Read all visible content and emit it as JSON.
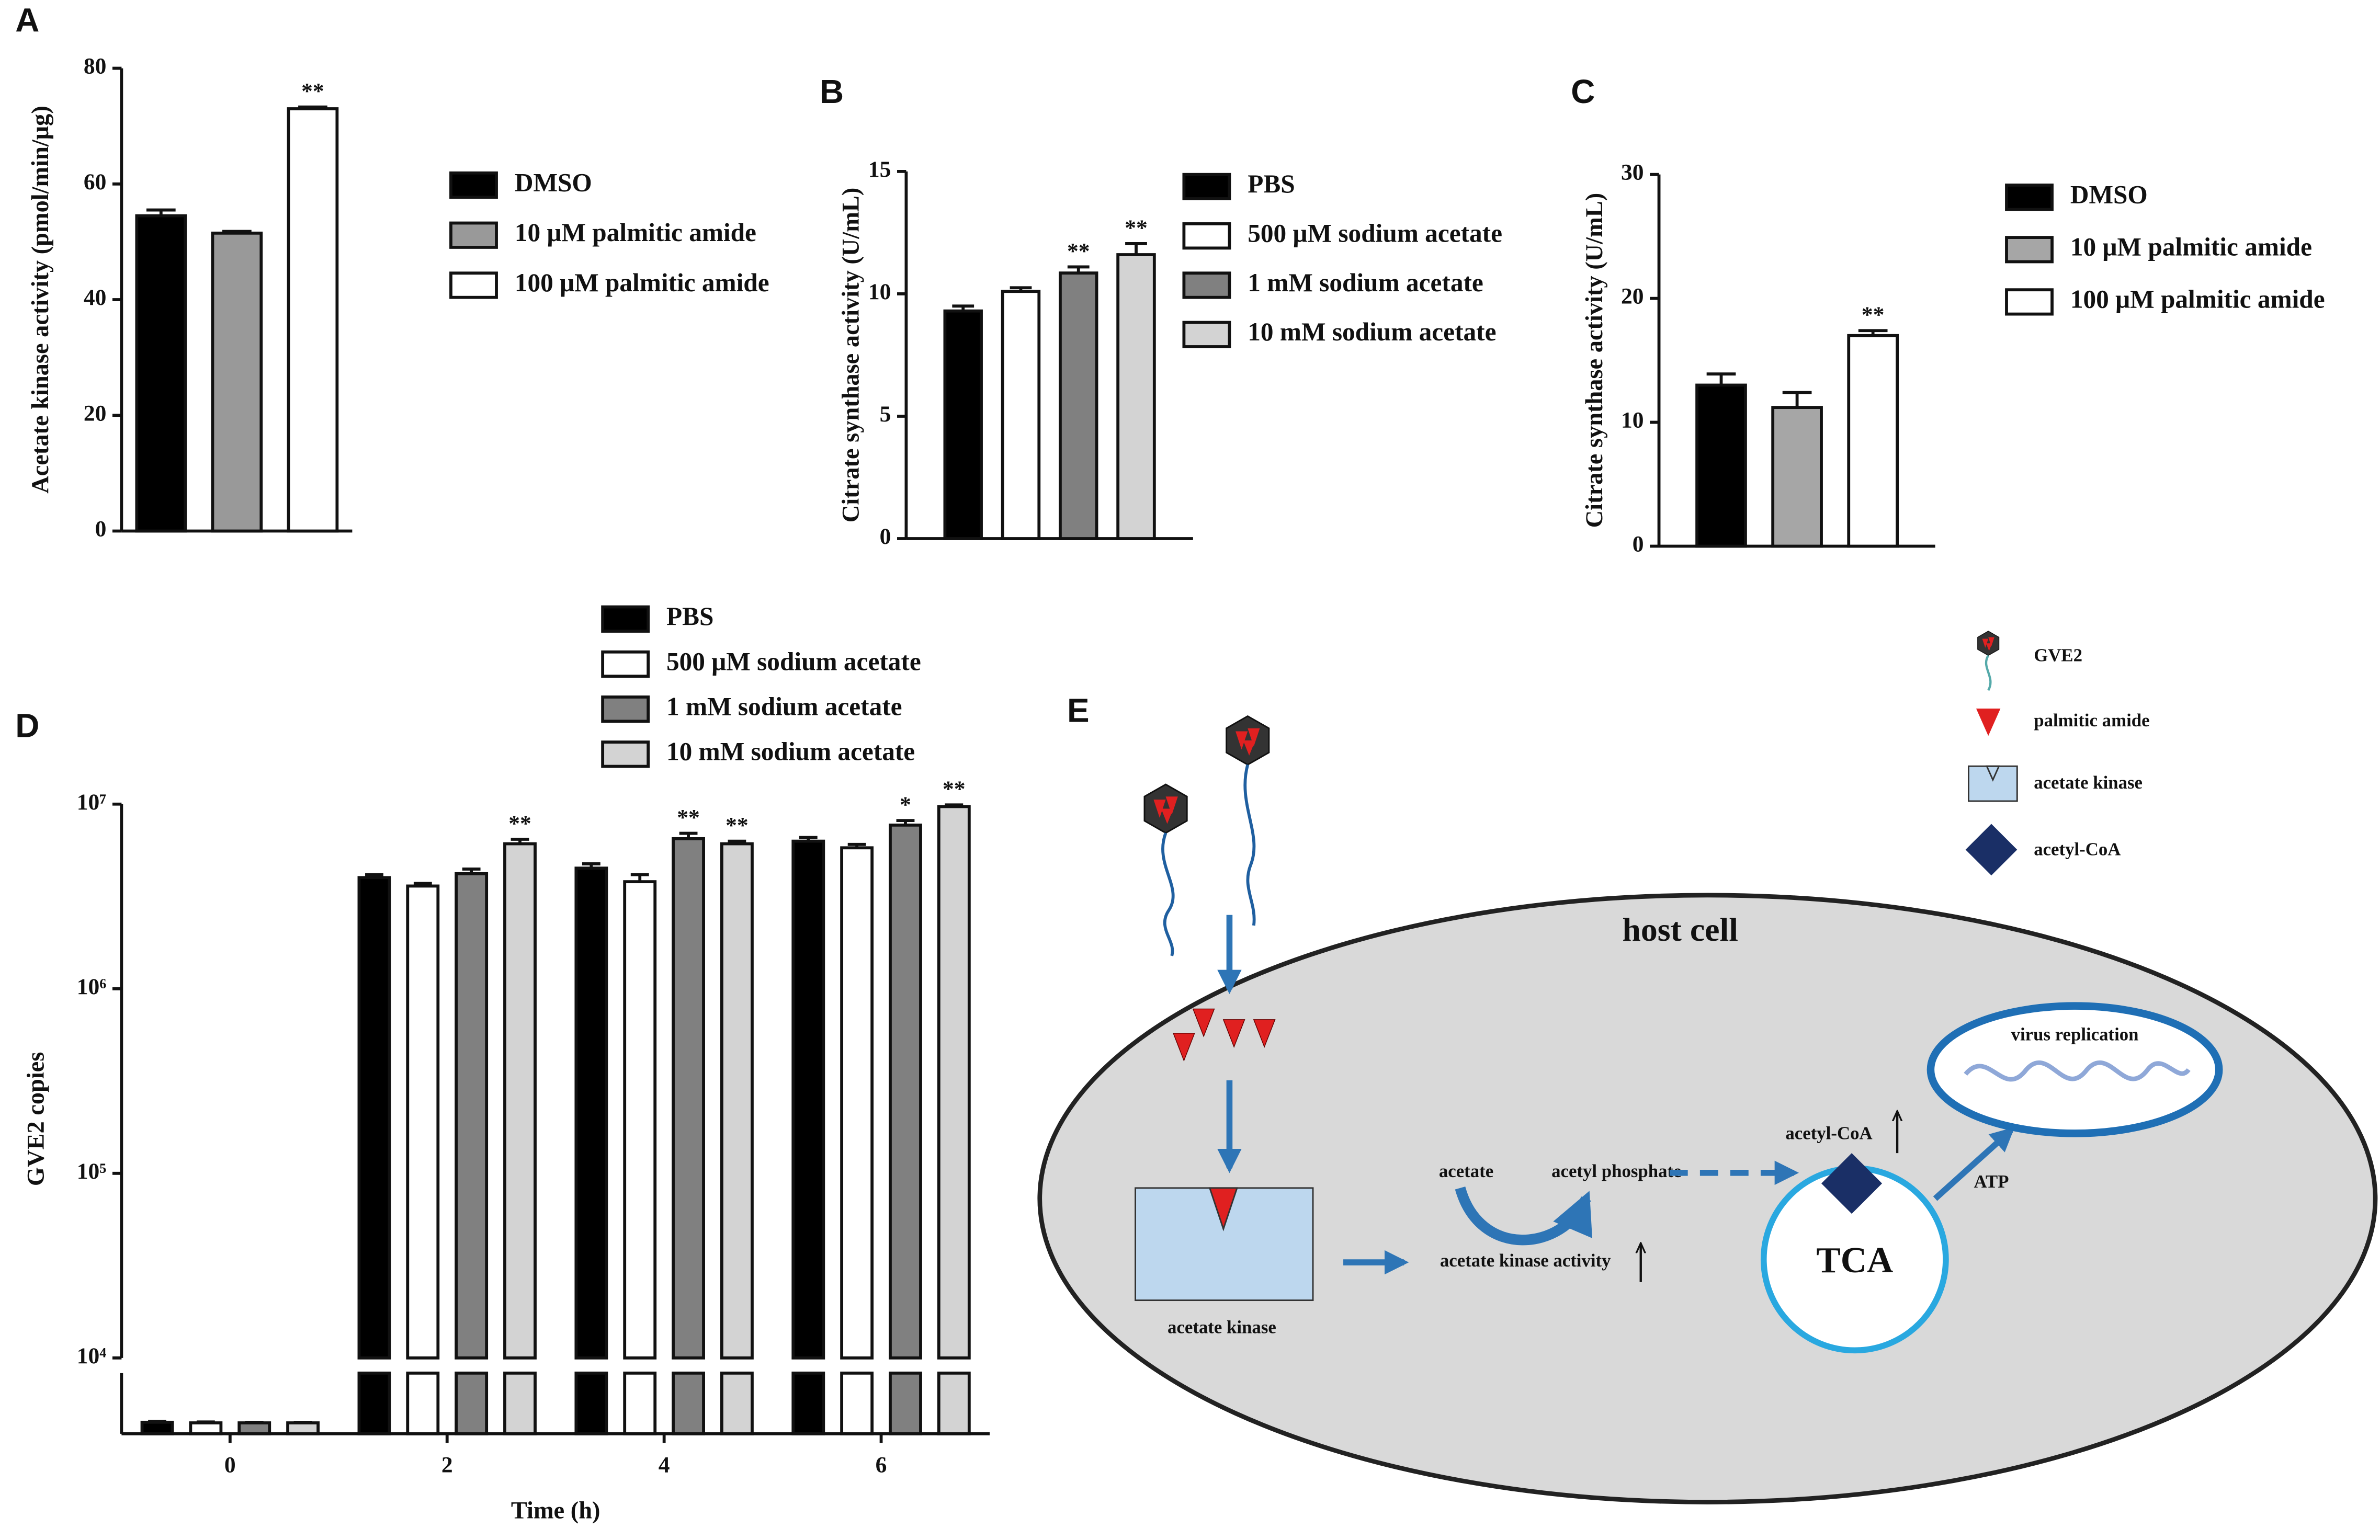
{
  "chart_data": [
    {
      "type": "bar",
      "label": "A",
      "ylabel": "Acetate kinase activity (pmol/min/μg)",
      "categories": [
        null
      ],
      "series": [
        {
          "name": "DMSO",
          "color": "#000000",
          "values": [
            54.5
          ],
          "errors": [
            1.0
          ],
          "significance": [
            null
          ]
        },
        {
          "name": "10 μM palmitic amide",
          "color": "#999999",
          "values": [
            51.5
          ],
          "errors": [
            0.3
          ],
          "significance": [
            null
          ]
        },
        {
          "name": "100 μM palmitic amide",
          "color": "#ffffff",
          "values": [
            73
          ],
          "errors": [
            0.3
          ],
          "significance": [
            "**"
          ]
        }
      ],
      "ylim": [
        0,
        80
      ],
      "yticks": [
        0,
        20,
        40,
        60,
        80
      ],
      "legend": "right"
    },
    {
      "type": "bar",
      "label": "B",
      "ylabel": "Citrate synthase activity (U/mL)",
      "categories": [
        null
      ],
      "series": [
        {
          "name": "PBS",
          "color": "#000000",
          "values": [
            9.3
          ],
          "errors": [
            0.2
          ],
          "significance": [
            null
          ]
        },
        {
          "name": "500 μM sodium acetate",
          "color": "#ffffff",
          "values": [
            10.1
          ],
          "errors": [
            0.15
          ],
          "significance": [
            null
          ]
        },
        {
          "name": "1 mM sodium acetate",
          "color": "#808080",
          "values": [
            10.85
          ],
          "errors": [
            0.25
          ],
          "significance": [
            "**"
          ]
        },
        {
          "name": "10 mM sodium acetate",
          "color": "#d3d3d3",
          "values": [
            11.6
          ],
          "errors": [
            0.45
          ],
          "significance": [
            "**"
          ]
        }
      ],
      "ylim": [
        0,
        15
      ],
      "yticks": [
        0,
        5,
        10,
        15
      ],
      "legend": "right"
    },
    {
      "type": "bar",
      "label": "C",
      "ylabel": "Citrate synthase activity (U/mL)",
      "categories": [
        null
      ],
      "series": [
        {
          "name": "DMSO",
          "color": "#000000",
          "values": [
            13
          ],
          "errors": [
            0.9
          ],
          "significance": [
            null
          ]
        },
        {
          "name": "10 μM palmitic amide",
          "color": "#a6a6a6",
          "values": [
            11.2
          ],
          "errors": [
            1.2
          ],
          "significance": [
            null
          ]
        },
        {
          "name": "100 μM palmitic amide",
          "color": "#ffffff",
          "values": [
            17
          ],
          "errors": [
            0.4
          ],
          "significance": [
            "**"
          ]
        }
      ],
      "ylim": [
        0,
        30
      ],
      "yticks": [
        0,
        10,
        20,
        30
      ],
      "legend": "right"
    },
    {
      "type": "bar",
      "label": "D",
      "ylabel": "GVE2 copies",
      "xlabel": "Time (h)",
      "categories": [
        "0",
        "2",
        "4",
        "6"
      ],
      "series": [
        {
          "name": "PBS",
          "color": "#000000",
          "values": [
            1900,
            4000000,
            4500000,
            6300000
          ],
          "errors": [
            150,
            150000,
            250000,
            300000
          ],
          "significance": [
            null,
            null,
            null,
            null
          ]
        },
        {
          "name": "500 μM sodium acetate",
          "color": "#ffffff",
          "values": [
            1800,
            3600000,
            3800000,
            5800000
          ],
          "errors": [
            150,
            120000,
            350000,
            250000
          ],
          "significance": [
            null,
            null,
            null,
            null
          ]
        },
        {
          "name": "1 mM sodium acetate",
          "color": "#808080",
          "values": [
            1800,
            4200000,
            6500000,
            7700000
          ],
          "errors": [
            100,
            250000,
            450000,
            450000
          ],
          "significance": [
            null,
            null,
            "**",
            "*"
          ]
        },
        {
          "name": "10 mM sodium acetate",
          "color": "#d3d3d3",
          "values": [
            1800,
            6100000,
            6100000,
            9700000
          ],
          "errors": [
            100,
            350000,
            200000,
            200000
          ],
          "significance": [
            null,
            "**",
            "**",
            "**"
          ]
        }
      ],
      "log_scale": true,
      "ylim": [
        10000,
        10000000
      ],
      "ylim_lower": [
        0,
        10000
      ],
      "yticks": [
        {
          "value": 10000,
          "label": "10⁴"
        },
        {
          "value": 100000,
          "label": "10⁵"
        },
        {
          "value": 1000000,
          "label": "10⁶"
        },
        {
          "value": 10000000,
          "label": "10⁷"
        }
      ],
      "legend": "top"
    }
  ],
  "diagram": {
    "label": "E",
    "legend": [
      "GVE2",
      "palmitic amide",
      "acetate kinase",
      "acetyl-CoA"
    ],
    "host": "host cell",
    "virus_replication": "virus replication",
    "acetyl_coa": "acetyl-CoA",
    "atp": "ATP",
    "tca": "TCA",
    "acetate": "acetate",
    "acetyl_phosphate": "acetyl phosphate",
    "activity": "acetate kinase activity",
    "enzyme": "acetate kinase"
  }
}
